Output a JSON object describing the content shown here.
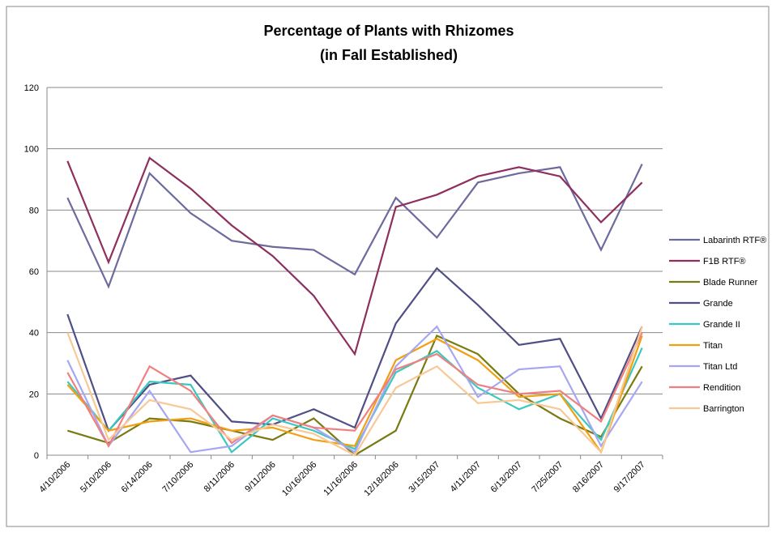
{
  "chart_data": {
    "type": "line",
    "title": "Percentage of Plants with Rhizomes",
    "subtitle": "(in Fall Established)",
    "categories": [
      "4/10/2006",
      "5/10/2006",
      "6/14/2006",
      "7/10/2006",
      "8/11/2006",
      "9/11/2006",
      "10/16/2006",
      "11/16/2006",
      "12/18/2006",
      "3/15/2007",
      "4/11/2007",
      "6/13/2007",
      "7/25/2007",
      "8/16/2007",
      "9/17/2007"
    ],
    "series": [
      {
        "name": "Labarinth RTF®",
        "color": "#6d6a9e",
        "values": [
          84,
          55,
          92,
          79,
          70,
          68,
          67,
          59,
          84,
          71,
          89,
          92,
          94,
          67,
          95
        ]
      },
      {
        "name": "F1B RTF®",
        "color": "#8e2f5e",
        "values": [
          96,
          63,
          97,
          87,
          75,
          65,
          52,
          33,
          81,
          85,
          91,
          94,
          91,
          76,
          89
        ]
      },
      {
        "name": "Blade Runner",
        "color": "#7a7a12",
        "values": [
          8,
          4,
          12,
          11,
          8,
          5,
          12,
          0,
          8,
          39,
          33,
          20,
          12,
          6,
          29
        ]
      },
      {
        "name": "Grande",
        "color": "#4f4f86",
        "values": [
          46,
          8,
          23,
          26,
          11,
          10,
          15,
          9,
          43,
          61,
          49,
          36,
          38,
          12,
          42
        ]
      },
      {
        "name": "Grande II",
        "color": "#3cc8c0",
        "values": [
          24,
          8,
          24,
          23,
          1,
          12,
          8,
          2,
          27,
          34,
          22,
          15,
          20,
          5,
          35
        ]
      },
      {
        "name": "Titan",
        "color": "#f0a012",
        "values": [
          23,
          8,
          11,
          12,
          8,
          9,
          5,
          3,
          31,
          38,
          31,
          19,
          20,
          1,
          39
        ]
      },
      {
        "name": "Titan Ltd",
        "color": "#a6a6f2",
        "values": [
          31,
          3,
          21,
          1,
          3,
          13,
          9,
          1,
          29,
          42,
          19,
          28,
          29,
          3,
          24
        ]
      },
      {
        "name": "Rendition",
        "color": "#f08080",
        "values": [
          27,
          3,
          29,
          21,
          4,
          13,
          9,
          8,
          28,
          33,
          23,
          20,
          21,
          11,
          40
        ]
      },
      {
        "name": "Barrington",
        "color": "#f8c896",
        "values": [
          40,
          5,
          18,
          15,
          5,
          10,
          7,
          0,
          22,
          29,
          17,
          18,
          15,
          1,
          42
        ]
      }
    ],
    "ylim": [
      0,
      120
    ],
    "yticks": [
      0,
      20,
      40,
      60,
      80,
      100,
      120
    ],
    "grid": true,
    "legend": "right"
  }
}
